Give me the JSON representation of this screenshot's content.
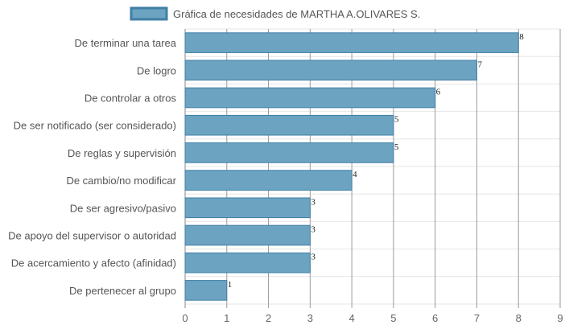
{
  "chart_data": {
    "type": "bar",
    "orientation": "horizontal",
    "categories": [
      "De terminar una tarea",
      "De logro",
      "De controlar a otros",
      "De ser notificado (ser considerado)",
      "De reglas y supervisión",
      "De cambio/no modificar",
      "De ser agresivo/pasivo",
      "De apoyo del supervisor o autoridad",
      "De acercamiento y afecto (afinidad)",
      "De pertenecer al grupo"
    ],
    "series": [
      {
        "name": "Gráfica de necesidades de MARTHA A.OLIVARES S.",
        "values": [
          8,
          7,
          6,
          5,
          5,
          4,
          3,
          3,
          3,
          1
        ],
        "color": "#6ca3c1",
        "border_color": "#3f7fa5"
      }
    ],
    "xlim": [
      0,
      9
    ],
    "x_ticks": [
      "0",
      "1",
      "2",
      "3",
      "4",
      "5",
      "6",
      "7",
      "8",
      "9"
    ],
    "grid": true,
    "legend": "top-center",
    "data_labels": true
  }
}
